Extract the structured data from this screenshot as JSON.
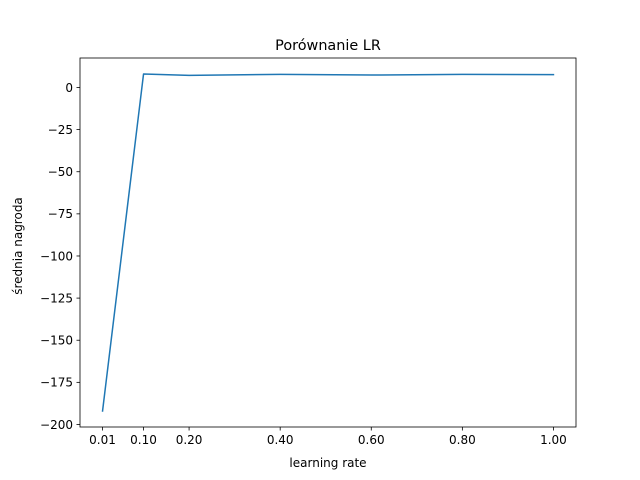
{
  "chart_data": {
    "type": "line",
    "title": "Porównanie LR",
    "xlabel": "learning rate",
    "ylabel": "średnia nagroda",
    "x": [
      0.01,
      0.1,
      0.2,
      0.4,
      0.6,
      0.8,
      1.0
    ],
    "x_tick_labels": [
      "0.01",
      "0.10",
      "0.20",
      "0.40",
      "0.60",
      "0.80",
      "1.00"
    ],
    "y_ticks": [
      0,
      -25,
      -50,
      -75,
      -100,
      -125,
      -150,
      -175,
      -200
    ],
    "y_tick_labels": [
      "0",
      "−25",
      "−50",
      "−75",
      "−100",
      "−125",
      "−150",
      "−175",
      "−200"
    ],
    "series": [
      {
        "values": [
          -192,
          8,
          7.2,
          7.8,
          7.4,
          7.8,
          7.6
        ],
        "color": "#1f77b4"
      }
    ],
    "xlim": [
      -0.0395,
      1.0495
    ],
    "ylim": [
      -201.5,
      17.5
    ],
    "grid": false,
    "legend": "none"
  }
}
